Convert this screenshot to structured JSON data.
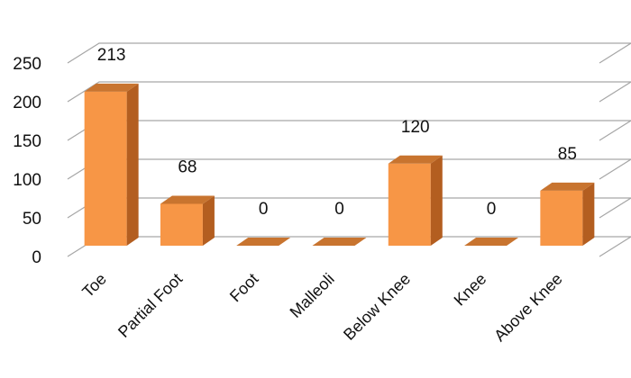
{
  "chart_data": {
    "type": "bar",
    "style": "3d-column",
    "title": "",
    "xlabel": "",
    "ylabel": "",
    "categories": [
      "Toe",
      "Partial Foot",
      "Foot",
      "Malleoli",
      "Below Knee",
      "Knee",
      "Above Knee"
    ],
    "values": [
      213,
      68,
      0,
      0,
      120,
      0,
      85
    ],
    "data_labels": [
      "213",
      "68",
      "0",
      "0",
      "120",
      "0",
      "85"
    ],
    "y_ticks": [
      0,
      50,
      100,
      150,
      200,
      250
    ],
    "y_tick_labels": [
      "0",
      "50",
      "100",
      "150",
      "200",
      "250"
    ],
    "ylim": [
      0,
      250
    ],
    "grid": true,
    "legend": "none",
    "colors": {
      "bar_front": "#F79646",
      "bar_side": "#B35E20",
      "bar_top": "#C8742F",
      "gridline": "#A6A6A6"
    }
  }
}
